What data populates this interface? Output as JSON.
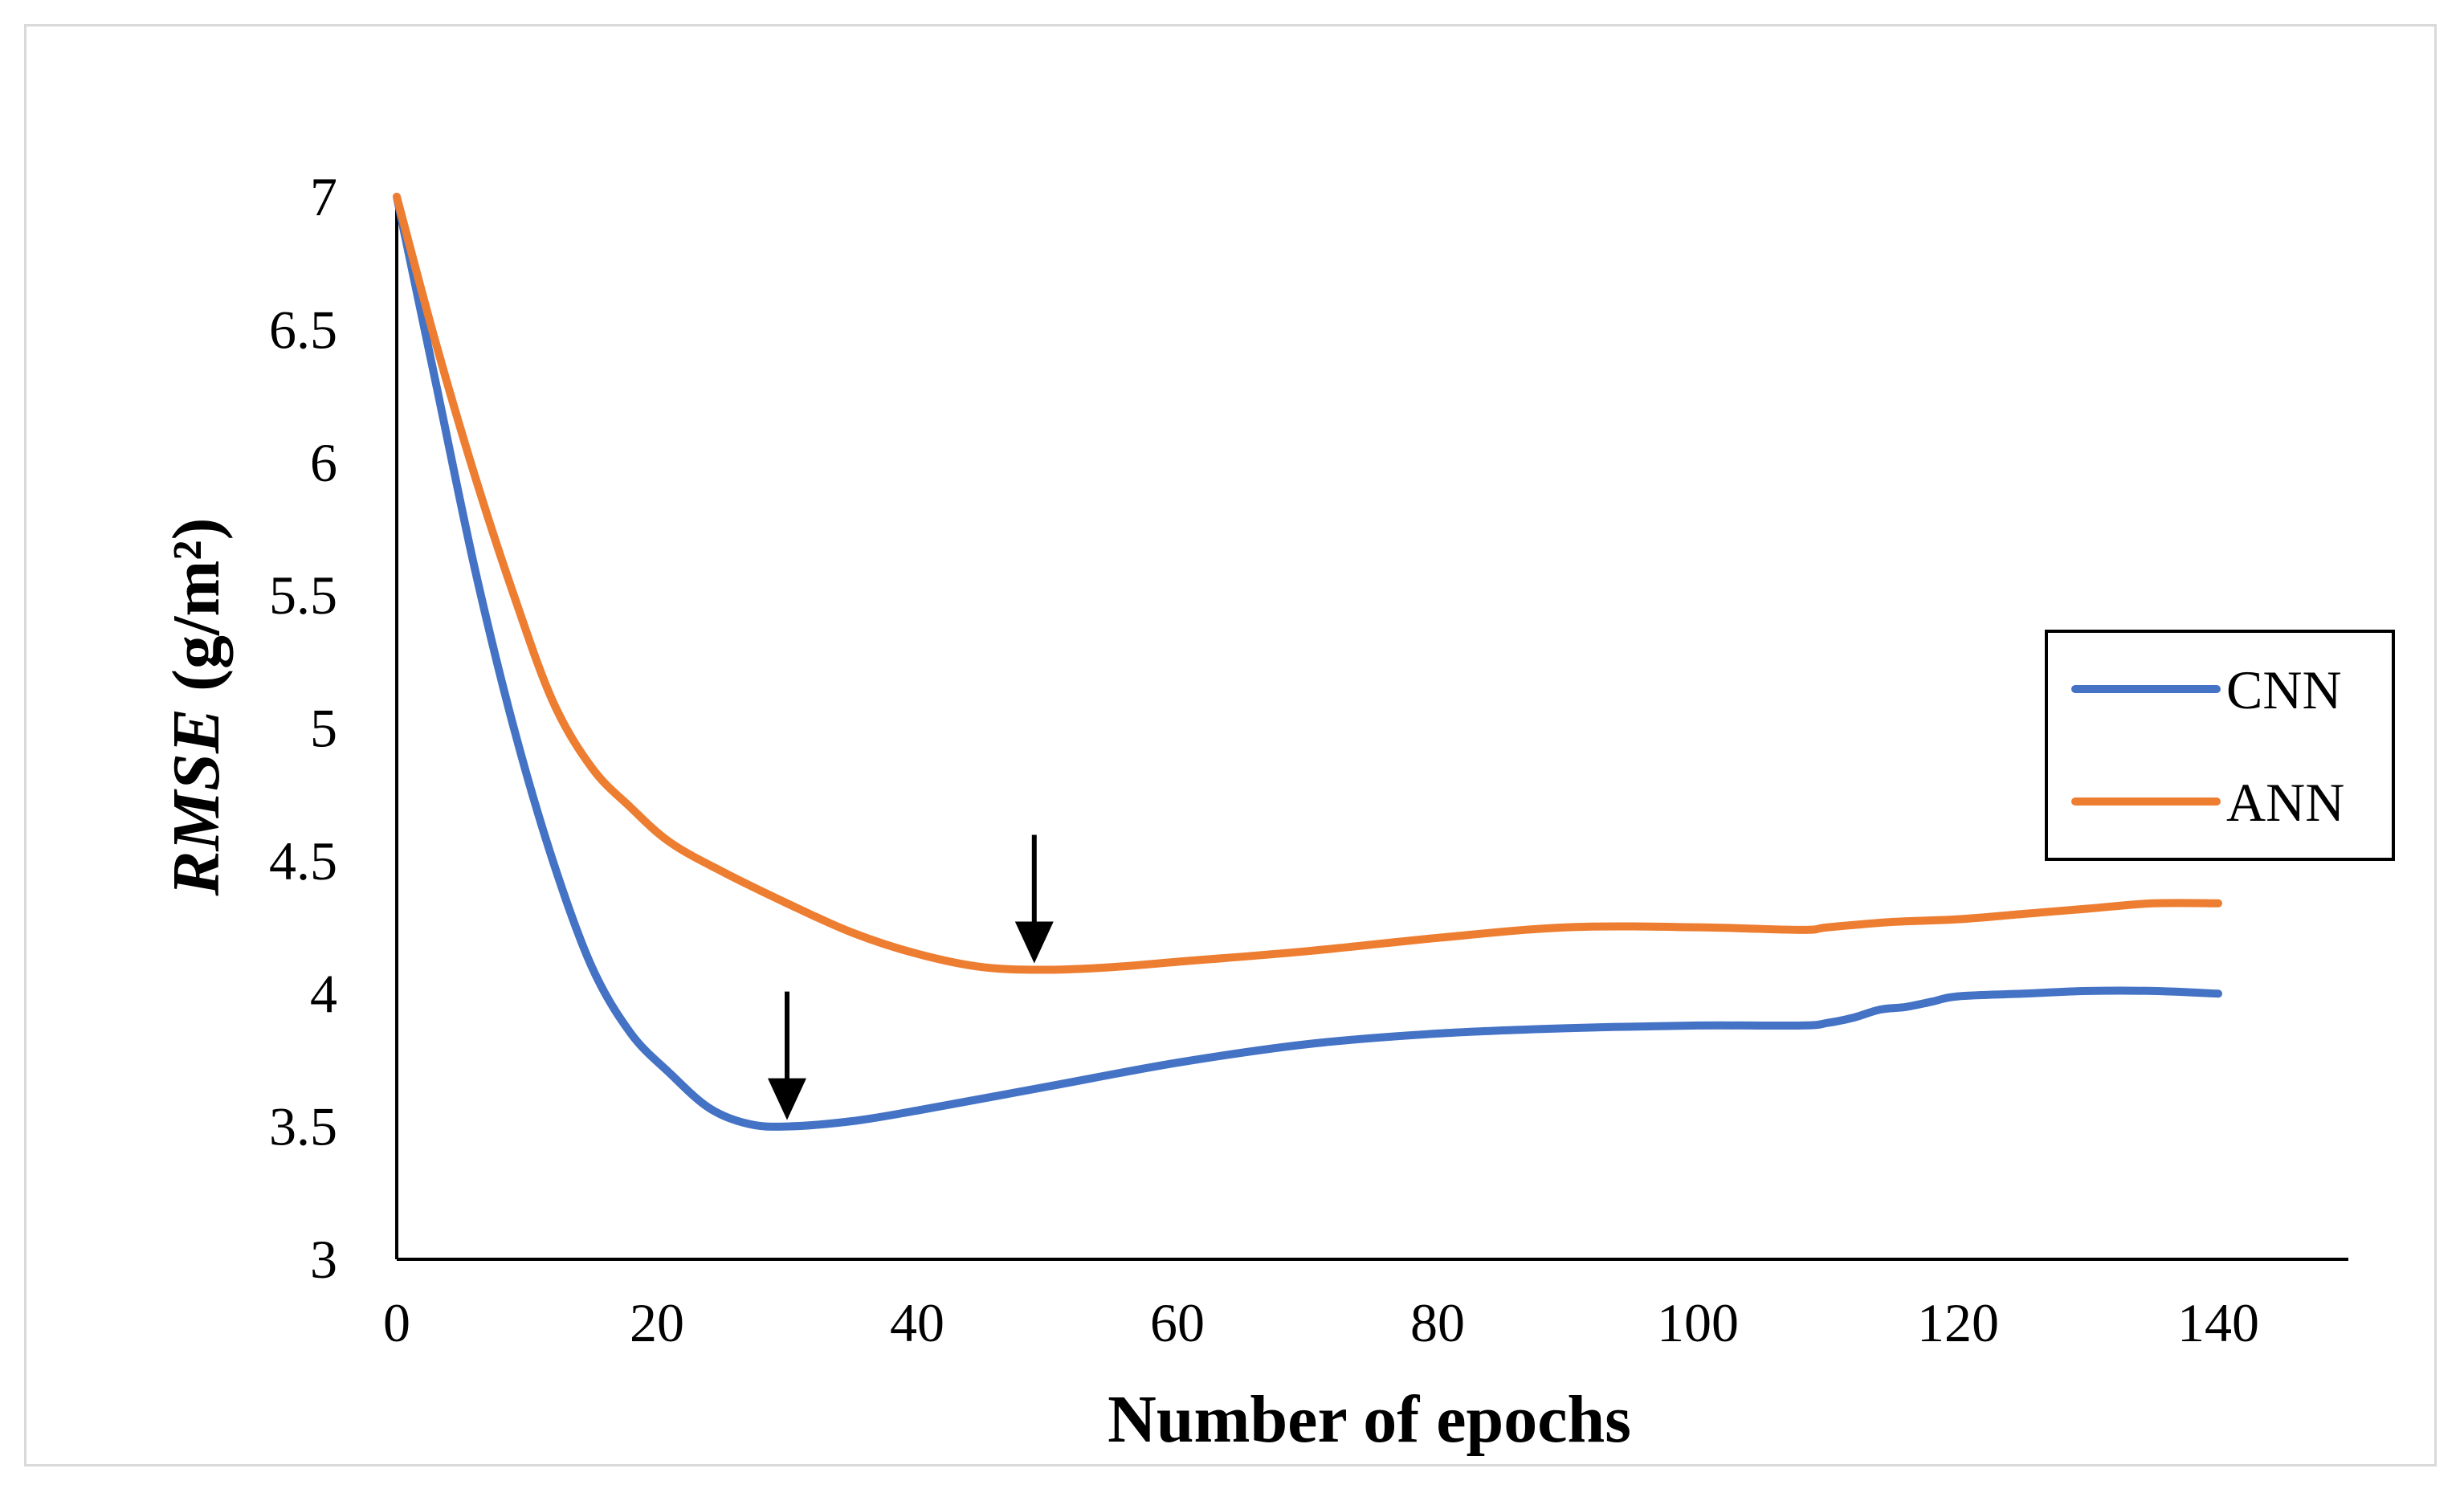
{
  "chart_data": {
    "type": "line",
    "title": "",
    "xlabel": "Number of epochs",
    "ylabel_italic": "RMSE",
    "ylabel_rest": " (g/m²)",
    "xlim": [
      0,
      150
    ],
    "ylim": [
      3,
      7
    ],
    "xticks": [
      0,
      20,
      40,
      60,
      80,
      100,
      120,
      140
    ],
    "yticks": [
      3,
      3.5,
      4,
      4.5,
      5,
      5.5,
      6,
      6.5,
      7
    ],
    "grid": false,
    "legend_position": "right",
    "series": [
      {
        "name": "CNN",
        "color": "#4472c4",
        "x": [
          0,
          3,
          6,
          9,
          12,
          15,
          18,
          21,
          24,
          27,
          30,
          35,
          40,
          50,
          60,
          70,
          80,
          90,
          100,
          108,
          110,
          112,
          114,
          116,
          118,
          120,
          125,
          130,
          135,
          140
        ],
        "y": [
          7.0,
          6.3,
          5.6,
          5.0,
          4.5,
          4.1,
          3.85,
          3.7,
          3.57,
          3.51,
          3.5,
          3.52,
          3.56,
          3.65,
          3.74,
          3.81,
          3.85,
          3.87,
          3.88,
          3.88,
          3.89,
          3.91,
          3.94,
          3.95,
          3.97,
          3.99,
          4.0,
          4.01,
          4.01,
          4.0
        ]
      },
      {
        "name": "ANN",
        "color": "#ed7d31",
        "x": [
          0,
          3,
          6,
          9,
          12,
          15,
          18,
          21,
          25,
          30,
          35,
          40,
          45,
          50,
          55,
          60,
          70,
          80,
          90,
          100,
          108,
          110,
          115,
          120,
          125,
          130,
          135,
          140
        ],
        "y": [
          7.0,
          6.45,
          5.95,
          5.5,
          5.1,
          4.85,
          4.7,
          4.57,
          4.46,
          4.34,
          4.23,
          4.15,
          4.1,
          4.09,
          4.1,
          4.12,
          4.16,
          4.21,
          4.25,
          4.25,
          4.24,
          4.25,
          4.27,
          4.28,
          4.3,
          4.32,
          4.34,
          4.34
        ]
      }
    ],
    "annotations": [
      {
        "type": "arrow",
        "series": "CNN",
        "x": 30,
        "y": 3.5
      },
      {
        "type": "arrow",
        "series": "ANN",
        "x": 49,
        "y": 4.09
      }
    ]
  }
}
